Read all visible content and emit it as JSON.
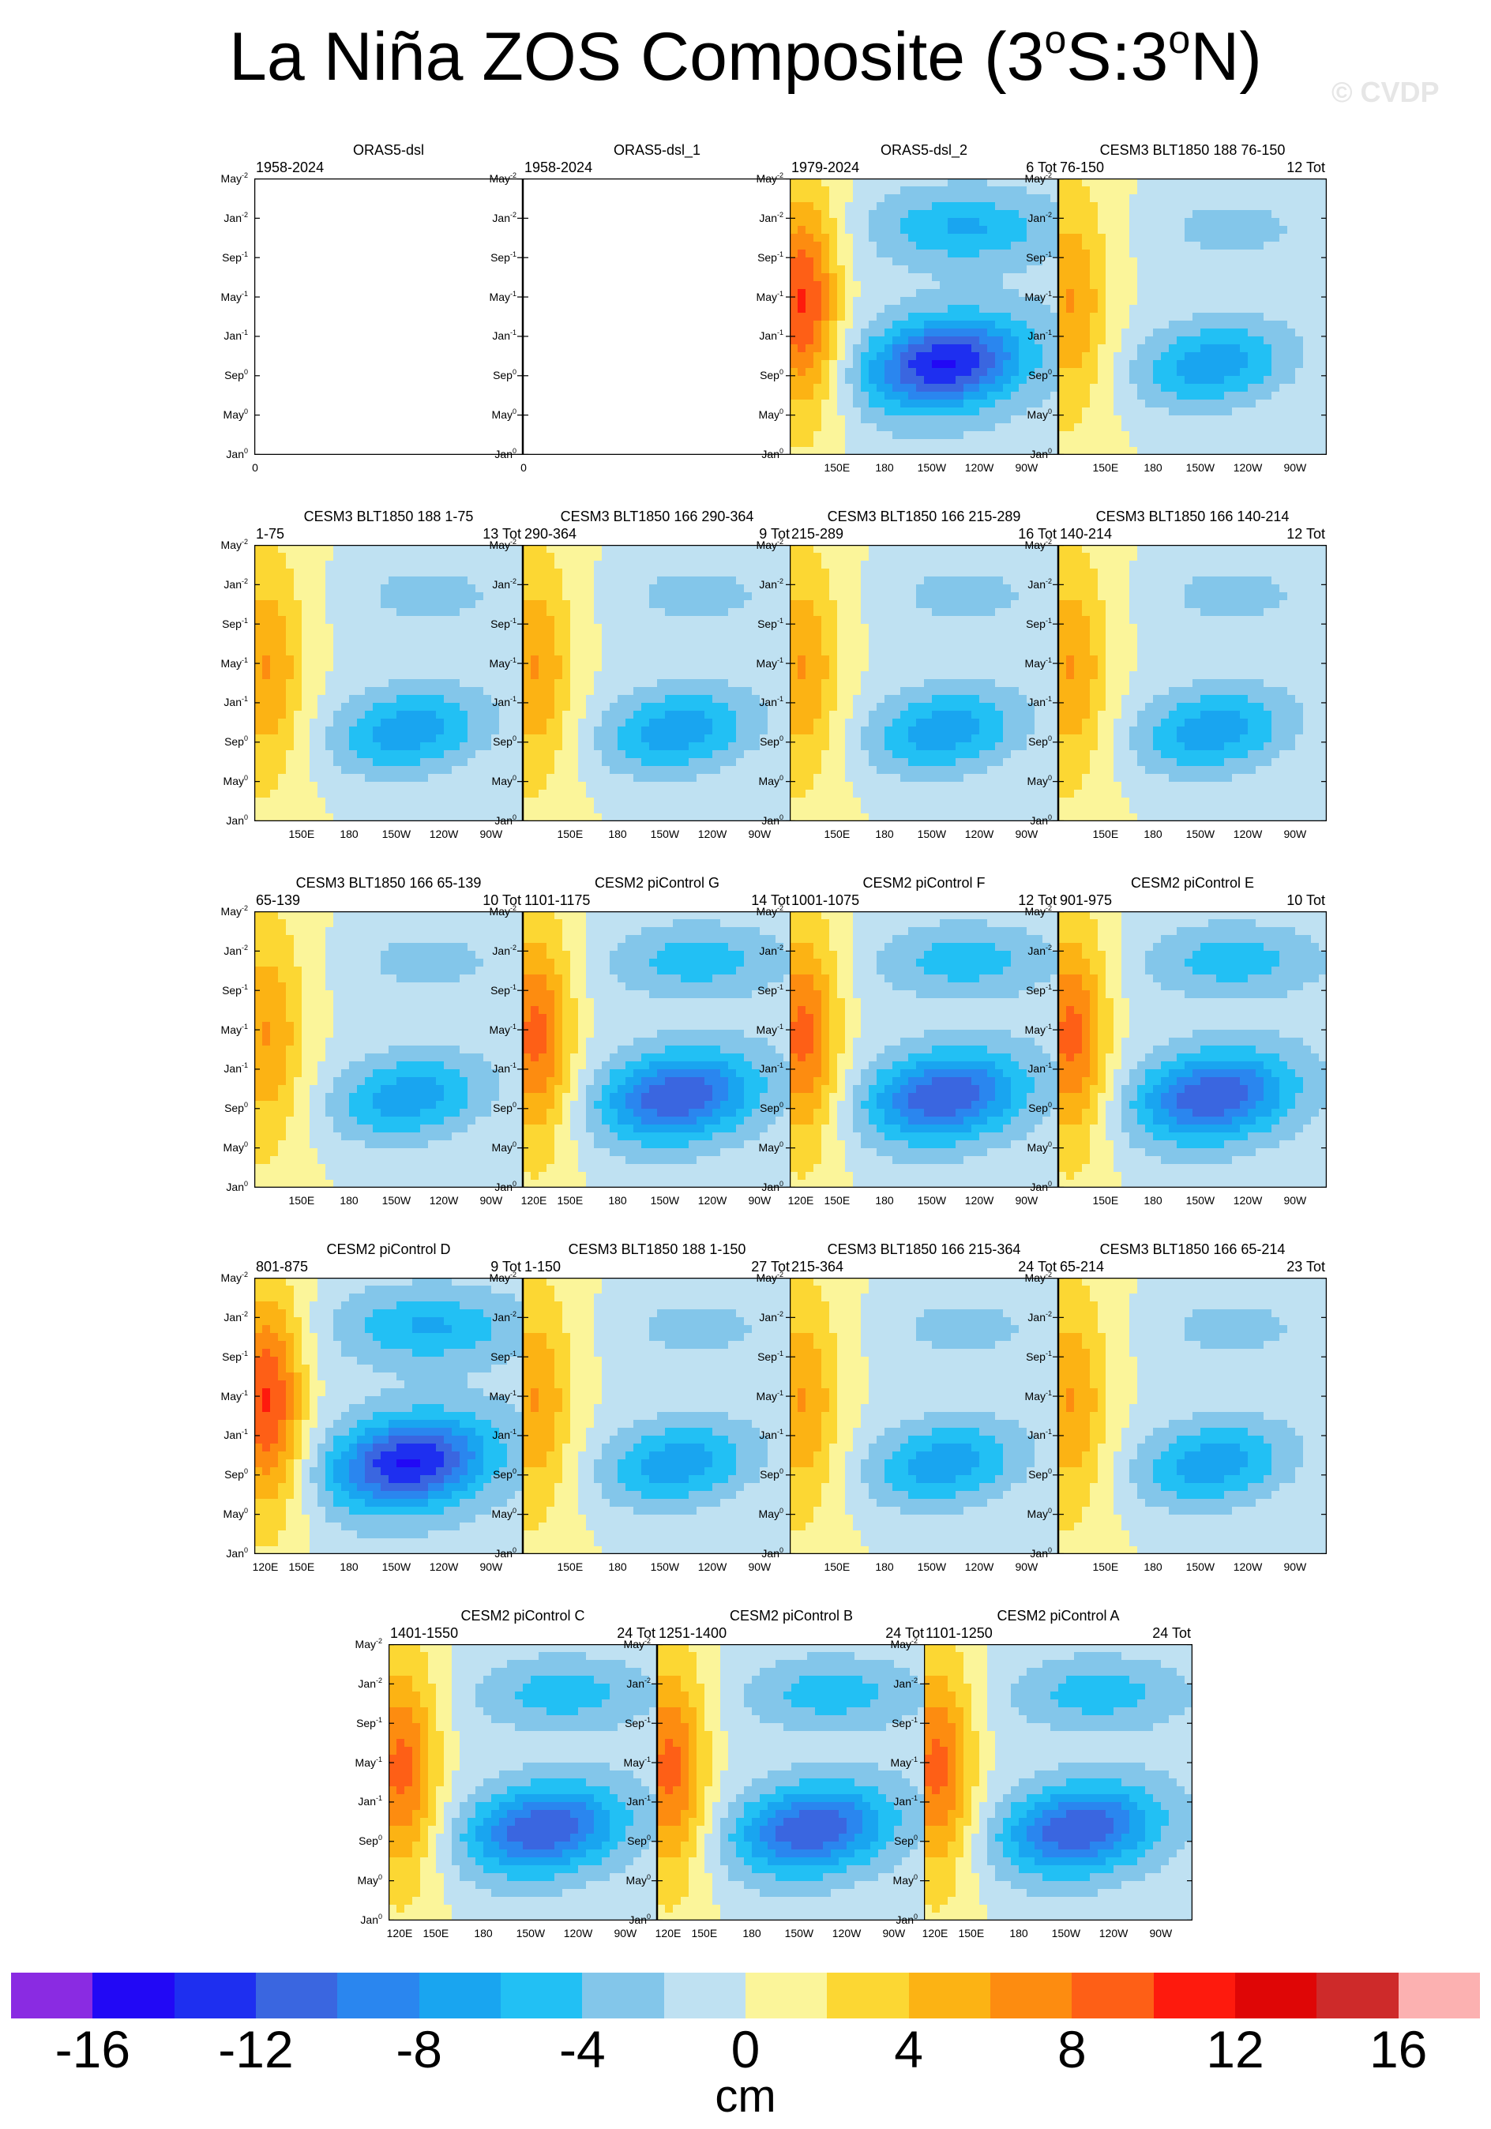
{
  "figure": {
    "title_main": "La Niña ZOS Composite (3",
    "title_deg1": "o",
    "title_mid": "S:3",
    "title_deg2": "o",
    "title_end": "N)",
    "credit": "© CVDP"
  },
  "colors": {
    "palette": [
      "#8a2be2",
      "#2208f5",
      "#1e2ff0",
      "#3a66e0",
      "#2a86ef",
      "#19a5f0",
      "#22c0f4",
      "#83c6ea",
      "#bfe1f2",
      "#fbf59a",
      "#fcd733",
      "#fcb314",
      "#fd8c10",
      "#fe5f16",
      "#fe1a0d",
      "#df0606",
      "#ce2a2a",
      "#fcb1b1"
    ],
    "outline": "#444444",
    "blank_panel": "#ffffff"
  },
  "axes": {
    "y_labels": [
      {
        "m": "May",
        "e": "-2"
      },
      {
        "m": "Jan",
        "e": "-2"
      },
      {
        "m": "Sep",
        "e": "-1"
      },
      {
        "m": "May",
        "e": "-1"
      },
      {
        "m": "Jan",
        "e": "-1"
      },
      {
        "m": "Sep",
        "e": "0"
      },
      {
        "m": "May",
        "e": "0"
      },
      {
        "m": "Jan",
        "e": "0"
      }
    ],
    "x_labels_full": [
      "120E",
      "150E",
      "180",
      "150W",
      "120W",
      "90W"
    ],
    "x_labels_short": [
      "150E",
      "180",
      "150W",
      "120W",
      "90W"
    ],
    "x_label_zero": "0"
  },
  "panels": [
    {
      "title": "ORAS5-dsl",
      "left": "1958-2024",
      "right": "",
      "empty": true,
      "style": null
    },
    {
      "title": "ORAS5-dsl_1",
      "left": "1958-2024",
      "right": "",
      "empty": true,
      "style": null
    },
    {
      "title": "ORAS5-dsl_2",
      "left": "1979-2024",
      "right": "6 Tot",
      "empty": false,
      "style": "strong"
    },
    {
      "title": "CESM3 BLT1850 188 76-150",
      "left": "76-150",
      "right": "12 Tot",
      "empty": false,
      "style": "weak"
    },
    {
      "title": "CESM3 BLT1850 188 1-75",
      "left": "1-75",
      "right": "13 Tot",
      "empty": false,
      "style": "weak"
    },
    {
      "title": "CESM3 BLT1850 166 290-364",
      "left": "290-364",
      "right": "9 Tot",
      "empty": false,
      "style": "weak"
    },
    {
      "title": "CESM3 BLT1850 166 215-289",
      "left": "215-289",
      "right": "16 Tot",
      "empty": false,
      "style": "weak"
    },
    {
      "title": "CESM3 BLT1850 166 140-214",
      "left": "140-214",
      "right": "12 Tot",
      "empty": false,
      "style": "weak"
    },
    {
      "title": "CESM3 BLT1850 166 65-139",
      "left": "65-139",
      "right": "10 Tot",
      "empty": false,
      "style": "weak"
    },
    {
      "title": "CESM2 piControl G",
      "left": "1101-1175",
      "right": "14 Tot",
      "empty": false,
      "style": "medium"
    },
    {
      "title": "CESM2 piControl F",
      "left": "1001-1075",
      "right": "12 Tot",
      "empty": false,
      "style": "medium"
    },
    {
      "title": "CESM2 piControl E",
      "left": "901-975",
      "right": "10 Tot",
      "empty": false,
      "style": "medium"
    },
    {
      "title": "CESM2 piControl D",
      "left": "801-875",
      "right": "9 Tot",
      "empty": false,
      "style": "strong"
    },
    {
      "title": "CESM3 BLT1850 188 1-150",
      "left": "1-150",
      "right": "27 Tot",
      "empty": false,
      "style": "weak"
    },
    {
      "title": "CESM3 BLT1850 166 215-364",
      "left": "215-364",
      "right": "24 Tot",
      "empty": false,
      "style": "weak"
    },
    {
      "title": "CESM3 BLT1850 166 65-214",
      "left": "65-214",
      "right": "23 Tot",
      "empty": false,
      "style": "weak"
    },
    {
      "title": "CESM2 piControl C",
      "left": "1401-1550",
      "right": "24 Tot",
      "empty": false,
      "style": "medium"
    },
    {
      "title": "CESM2 piControl B",
      "left": "1251-1400",
      "right": "24 Tot",
      "empty": false,
      "style": "medium"
    },
    {
      "title": "CESM2 piControl A",
      "left": "1101-1250",
      "right": "24 Tot",
      "empty": false,
      "style": "medium"
    }
  ],
  "chart_data": {
    "type": "heatmap",
    "description_units": "cm",
    "x_axis": "longitude (120E to 80W)",
    "y_axis": "time (Jan0 to May-2)",
    "levels": [
      -16,
      -14,
      -12,
      -10,
      -8,
      -6,
      -4,
      -2,
      0,
      2,
      4,
      6,
      8,
      10,
      12,
      14,
      16
    ],
    "colorbar_tick_labels": [
      "-16",
      "-12",
      "-8",
      "-4",
      "0",
      "4",
      "8",
      "12",
      "16"
    ],
    "units_label": "cm"
  }
}
